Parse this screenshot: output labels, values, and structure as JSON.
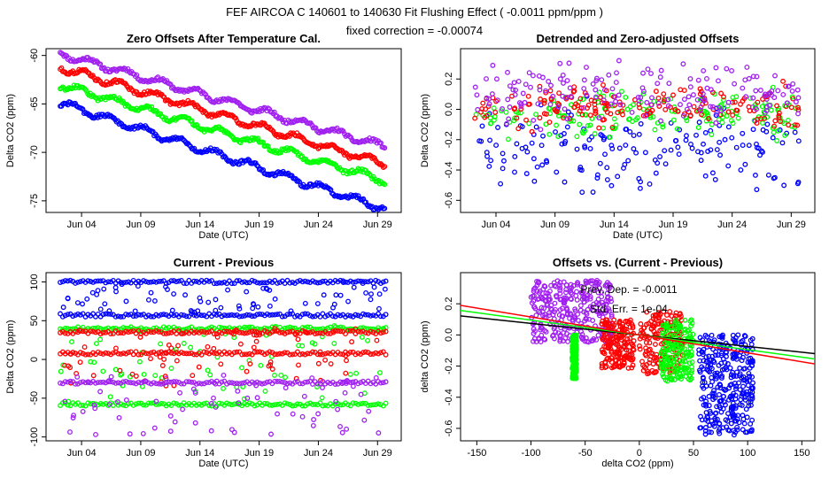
{
  "figure": {
    "title": "FEF   AIRCOA C   140601 to 140630   Fit Flushing Effect ( -0.0011 ppm/ppm )",
    "subtitle": "fixed correction = -0.00074",
    "colors": {
      "blue": "#0000ff",
      "green": "#00ff00",
      "red": "#ff0000",
      "purple": "#a020f0",
      "black": "#000000"
    }
  },
  "chart_data": [
    {
      "type": "scatter",
      "title": "Zero Offsets After Temperature Cal.",
      "xlabel": "Date (UTC)",
      "ylabel": "Delta CO2 (ppm)",
      "xlim": [
        0,
        30
      ],
      "ylim": [
        -76.2,
        -59.3
      ],
      "xticks": [
        3,
        8,
        13,
        18,
        23,
        28
      ],
      "xtick_labels": [
        "Jun 04",
        "Jun 09",
        "Jun 14",
        "Jun 19",
        "Jun 24",
        "Jun 29"
      ],
      "yticks": [
        -75,
        -70,
        -65,
        -60
      ],
      "ytick_labels": [
        "-75",
        "-70",
        "-65",
        "-60"
      ],
      "series": [
        {
          "name": "purple",
          "color": "#a020f0",
          "start": -59.8,
          "end": -69.4
        },
        {
          "name": "red",
          "color": "#ff0000",
          "start": -61.2,
          "end": -71.2
        },
        {
          "name": "green",
          "color": "#00ff00",
          "start": -63.0,
          "end": -72.9
        },
        {
          "name": "blue",
          "color": "#0000ff",
          "start": -64.9,
          "end": -75.8
        }
      ]
    },
    {
      "type": "scatter",
      "title": "Detrended and Zero-adjusted Offsets",
      "xlabel": "Date (UTC)",
      "ylabel": "Delta CO2 (ppm)",
      "xlim": [
        0,
        30
      ],
      "ylim": [
        -0.68,
        0.4
      ],
      "xticks": [
        3,
        8,
        13,
        18,
        23,
        28
      ],
      "xtick_labels": [
        "Jun 04",
        "Jun 09",
        "Jun 14",
        "Jun 19",
        "Jun 24",
        "Jun 29"
      ],
      "yticks": [
        -0.6,
        -0.4,
        -0.2,
        0.0,
        0.2
      ],
      "ytick_labels": [
        "-0.6",
        "-0.4",
        "-0.2",
        "0.0",
        "0.2"
      ],
      "series": [
        {
          "name": "blue",
          "color": "#0000ff",
          "center": -0.25,
          "spread": 0.38
        },
        {
          "name": "green",
          "color": "#00ff00",
          "center": -0.05,
          "spread": 0.2
        },
        {
          "name": "red",
          "color": "#ff0000",
          "center": 0.02,
          "spread": 0.18
        },
        {
          "name": "purple",
          "color": "#a020f0",
          "center": 0.12,
          "spread": 0.25
        }
      ]
    },
    {
      "type": "scatter",
      "title": "Current - Previous",
      "xlabel": "Date (UTC)",
      "ylabel": "Delta CO2 (ppm)",
      "xlim": [
        0,
        30
      ],
      "ylim": [
        -105,
        112
      ],
      "xticks": [
        3,
        8,
        13,
        18,
        23,
        28
      ],
      "xtick_labels": [
        "Jun 04",
        "Jun 09",
        "Jun 14",
        "Jun 19",
        "Jun 24",
        "Jun 29"
      ],
      "yticks": [
        -100,
        -50,
        0,
        50,
        100
      ],
      "ytick_labels": [
        "-100",
        "-50",
        "0",
        "50",
        "100"
      ],
      "series": [
        {
          "name": "blue",
          "color": "#0000ff",
          "levels": [
            100,
            57
          ],
          "scatter": [
            60,
            100
          ]
        },
        {
          "name": "green",
          "color": "#00ff00",
          "levels": [
            40,
            -58
          ],
          "scatter": [
            -55,
            45
          ]
        },
        {
          "name": "red",
          "color": "#ff0000",
          "levels": [
            35,
            8
          ],
          "scatter": [
            -35,
            40
          ]
        },
        {
          "name": "purple",
          "color": "#a020f0",
          "levels": [
            -30
          ],
          "scatter": [
            -100,
            -20
          ]
        }
      ]
    },
    {
      "type": "scatter",
      "title": "Offsets vs. (Current - Previous)",
      "xlabel": "delta CO2 (ppm)",
      "ylabel": "delta CO2 (ppm)",
      "xlim": [
        -165,
        162
      ],
      "ylim": [
        -0.68,
        0.4
      ],
      "xticks": [
        -150,
        -100,
        -50,
        0,
        50,
        100,
        150
      ],
      "xtick_labels": [
        "-150",
        "-100",
        "-50",
        "0",
        "50",
        "100",
        "150"
      ],
      "yticks": [
        -0.6,
        -0.4,
        -0.2,
        0.0,
        0.2
      ],
      "ytick_labels": [
        "-0.6",
        "-0.4",
        "-0.2",
        "0.0",
        "0.2"
      ],
      "annotations": [
        "Prev. Dep. = -0.0011",
        "Std. Err. = 1e-04"
      ],
      "fit_lines": [
        {
          "name": "black",
          "color": "#000000",
          "intercept": 0.0,
          "slope": -0.00074
        },
        {
          "name": "green",
          "color": "#00ff00",
          "intercept": 0.0,
          "slope": -0.00095
        },
        {
          "name": "red",
          "color": "#ff0000",
          "intercept": 0.0,
          "slope": -0.00115
        }
      ],
      "clusters": [
        {
          "name": "purple",
          "color": "#a020f0",
          "x_range": [
            -100,
            -25
          ],
          "y_range": [
            -0.05,
            0.35
          ]
        },
        {
          "name": "green-left",
          "color": "#00ff00",
          "x_range": [
            -62,
            -58
          ],
          "y_range": [
            -0.28,
            0.0
          ]
        },
        {
          "name": "red-left",
          "color": "#ff0000",
          "x_range": [
            -35,
            -5
          ],
          "y_range": [
            -0.22,
            0.1
          ]
        },
        {
          "name": "red-mid",
          "color": "#ff0000",
          "x_range": [
            0,
            40
          ],
          "y_range": [
            -0.25,
            0.15
          ]
        },
        {
          "name": "green-right",
          "color": "#00ff00",
          "x_range": [
            20,
            50
          ],
          "y_range": [
            -0.3,
            0.1
          ]
        },
        {
          "name": "blue",
          "color": "#0000ff",
          "x_range": [
            55,
            105
          ],
          "y_range": [
            -0.65,
            0.0
          ]
        }
      ]
    }
  ]
}
